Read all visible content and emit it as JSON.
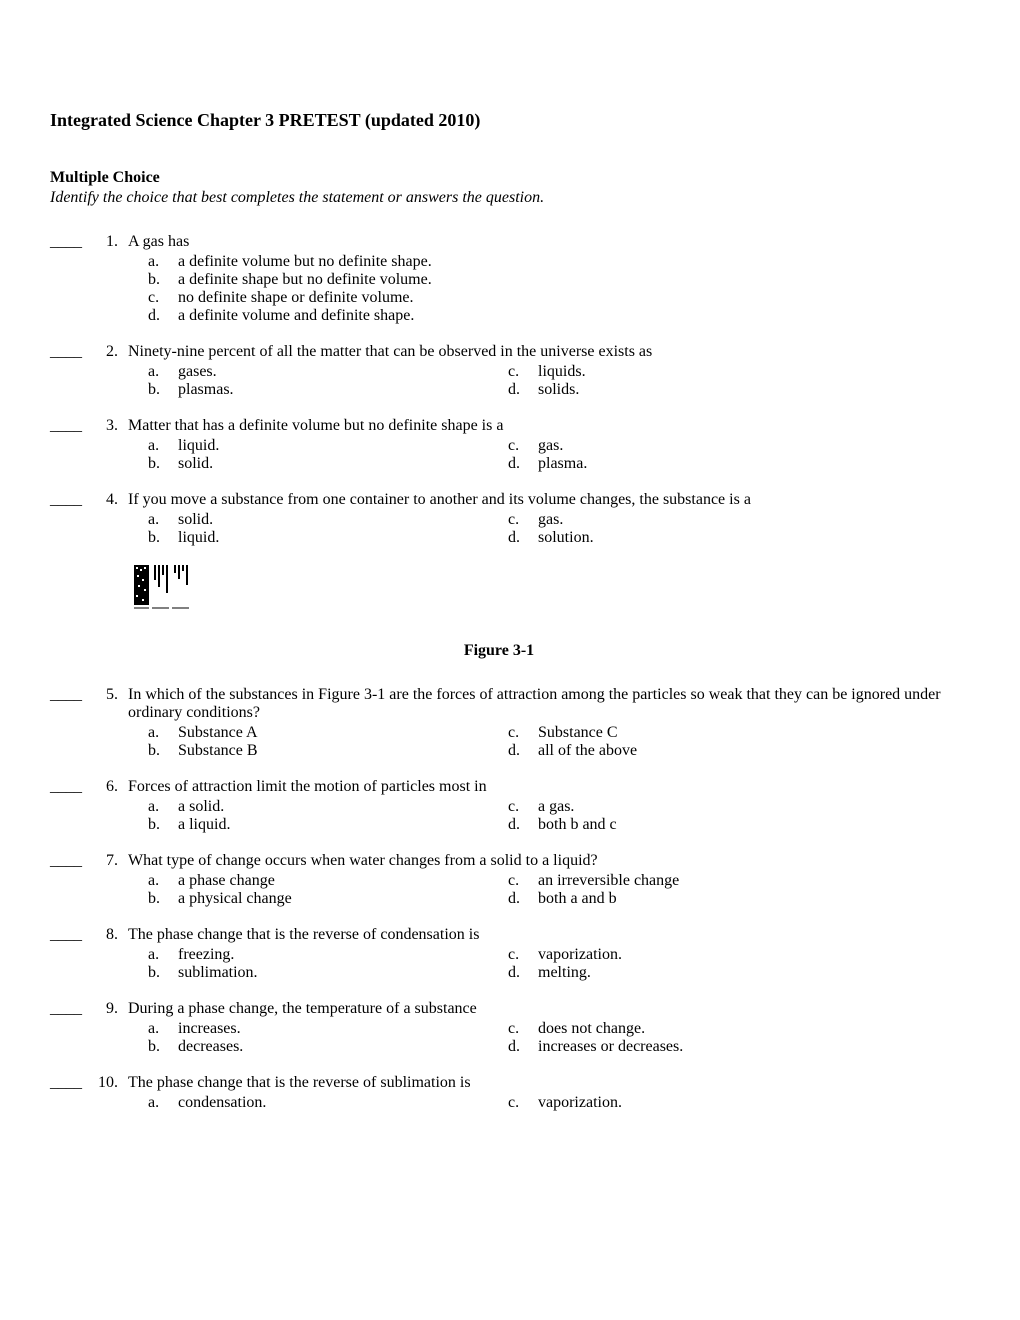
{
  "document": {
    "title": "Integrated Science Chapter 3 PRETEST (updated 2010)",
    "section_header": "Multiple Choice",
    "section_instruction": "Identify the choice that best completes the statement or answers the question.",
    "blank_marker": "____",
    "figure_caption": "Figure 3-1"
  },
  "questions": [
    {
      "number": "1.",
      "text": "A gas has",
      "layout": "single",
      "choices": [
        {
          "letter": "a.",
          "text": "a definite volume but no definite shape."
        },
        {
          "letter": "b.",
          "text": "a definite shape but no definite volume."
        },
        {
          "letter": "c.",
          "text": "no definite shape or definite volume."
        },
        {
          "letter": "d.",
          "text": "a definite volume and definite shape."
        }
      ]
    },
    {
      "number": "2.",
      "text": "Ninety-nine percent of all the matter that can be observed in the universe exists as",
      "layout": "double",
      "left": [
        {
          "letter": "a.",
          "text": "gases."
        },
        {
          "letter": "b.",
          "text": "plasmas."
        }
      ],
      "right": [
        {
          "letter": "c.",
          "text": "liquids."
        },
        {
          "letter": "d.",
          "text": "solids."
        }
      ]
    },
    {
      "number": "3.",
      "text": "Matter that has a definite volume but no definite shape is a",
      "layout": "double",
      "left": [
        {
          "letter": "a.",
          "text": "liquid."
        },
        {
          "letter": "b.",
          "text": "solid."
        }
      ],
      "right": [
        {
          "letter": "c.",
          "text": "gas."
        },
        {
          "letter": "d.",
          "text": "plasma."
        }
      ]
    },
    {
      "number": "4.",
      "text": "If you move a substance from one container to another and its volume changes, the substance is a",
      "layout": "double",
      "left": [
        {
          "letter": "a.",
          "text": "solid."
        },
        {
          "letter": "b.",
          "text": "liquid."
        }
      ],
      "right": [
        {
          "letter": "c.",
          "text": "gas."
        },
        {
          "letter": "d.",
          "text": "solution."
        }
      ]
    },
    {
      "number": "5.",
      "text": "In which of the substances in Figure 3-1 are the forces of attraction among the particles so weak that they can be ignored under ordinary conditions?",
      "layout": "double",
      "left": [
        {
          "letter": "a.",
          "text": "Substance A"
        },
        {
          "letter": "b.",
          "text": "Substance B"
        }
      ],
      "right": [
        {
          "letter": "c.",
          "text": "Substance C"
        },
        {
          "letter": "d.",
          "text": "all of the above"
        }
      ]
    },
    {
      "number": "6.",
      "text": "Forces of attraction limit the motion of particles most in",
      "layout": "double",
      "left": [
        {
          "letter": "a.",
          "text": "a solid."
        },
        {
          "letter": "b.",
          "text": "a liquid."
        }
      ],
      "right": [
        {
          "letter": "c.",
          "text": "a gas."
        },
        {
          "letter": "d.",
          "text": "both b and c"
        }
      ]
    },
    {
      "number": "7.",
      "text": "What type of change occurs when water changes from a solid to a liquid?",
      "layout": "double",
      "left": [
        {
          "letter": "a.",
          "text": "a phase change"
        },
        {
          "letter": "b.",
          "text": "a physical change"
        }
      ],
      "right": [
        {
          "letter": "c.",
          "text": "an irreversible change"
        },
        {
          "letter": "d.",
          "text": "both a and b"
        }
      ]
    },
    {
      "number": "8.",
      "text": "The phase change that is the reverse of condensation is",
      "layout": "double",
      "left": [
        {
          "letter": "a.",
          "text": "freezing."
        },
        {
          "letter": "b.",
          "text": "sublimation."
        }
      ],
      "right": [
        {
          "letter": "c.",
          "text": "vaporization."
        },
        {
          "letter": "d.",
          "text": "melting."
        }
      ]
    },
    {
      "number": "9.",
      "text": "During a phase change, the temperature of a substance",
      "layout": "double",
      "left": [
        {
          "letter": "a.",
          "text": "increases."
        },
        {
          "letter": "b.",
          "text": "decreases."
        }
      ],
      "right": [
        {
          "letter": "c.",
          "text": "does not change."
        },
        {
          "letter": "d.",
          "text": "increases or decreases."
        }
      ]
    },
    {
      "number": "10.",
      "text": "The phase change that is the reverse of sublimation is",
      "layout": "double",
      "left": [
        {
          "letter": "a.",
          "text": "condensation."
        }
      ],
      "right": [
        {
          "letter": "c.",
          "text": "vaporization."
        }
      ]
    }
  ]
}
